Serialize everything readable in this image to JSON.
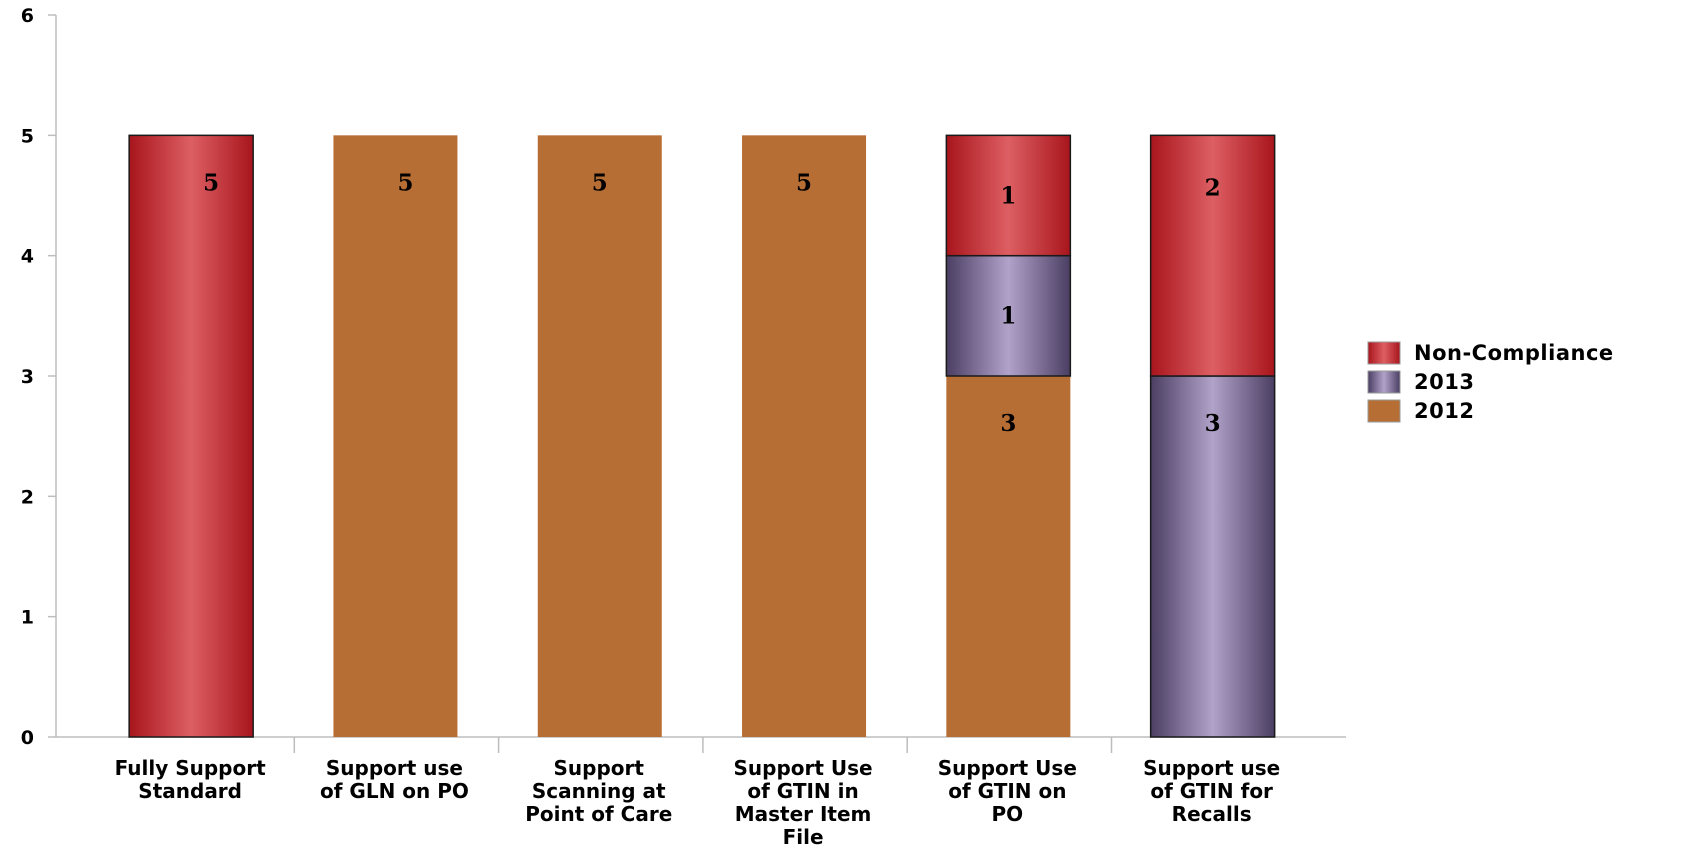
{
  "chart_data": {
    "type": "bar",
    "stacked": true,
    "categories": [
      "Fully Support Standard",
      "Support use of GLN on PO",
      "Support Scanning at Point of Care",
      "Support Use of GTIN in Master Item File",
      "Support Use of GTIN on PO",
      "Support use of GTIN for Recalls"
    ],
    "category_label_lines": [
      [
        "Fully Support",
        "Standard"
      ],
      [
        "Support use",
        "of GLN on PO"
      ],
      [
        "Support",
        "Scanning at",
        "Point of Care"
      ],
      [
        "Support Use",
        "of GTIN in",
        "Master Item",
        "File"
      ],
      [
        "Support Use",
        "of GTIN on",
        "PO"
      ],
      [
        "Support use",
        "of GTIN for",
        "Recalls"
      ]
    ],
    "series": [
      {
        "name": "2012",
        "values": [
          0,
          5,
          5,
          5,
          3,
          0
        ],
        "color": "#b76e34",
        "style": "flat"
      },
      {
        "name": "2013",
        "values": [
          0,
          0,
          0,
          0,
          1,
          3
        ],
        "color": "#7a6a94",
        "style": "gradient"
      },
      {
        "name": "Non-Compliance",
        "values": [
          5,
          0,
          0,
          0,
          1,
          2
        ],
        "color": "#c5282e",
        "style": "gradient"
      }
    ],
    "legend_order": [
      "Non-Compliance",
      "2013",
      "2012"
    ],
    "legend_position": "right",
    "ylim": [
      0,
      6
    ],
    "yticks": [
      "0",
      "1",
      "2",
      "3",
      "4",
      "5",
      "6"
    ],
    "xlabel": "",
    "ylabel": "",
    "title": ""
  }
}
